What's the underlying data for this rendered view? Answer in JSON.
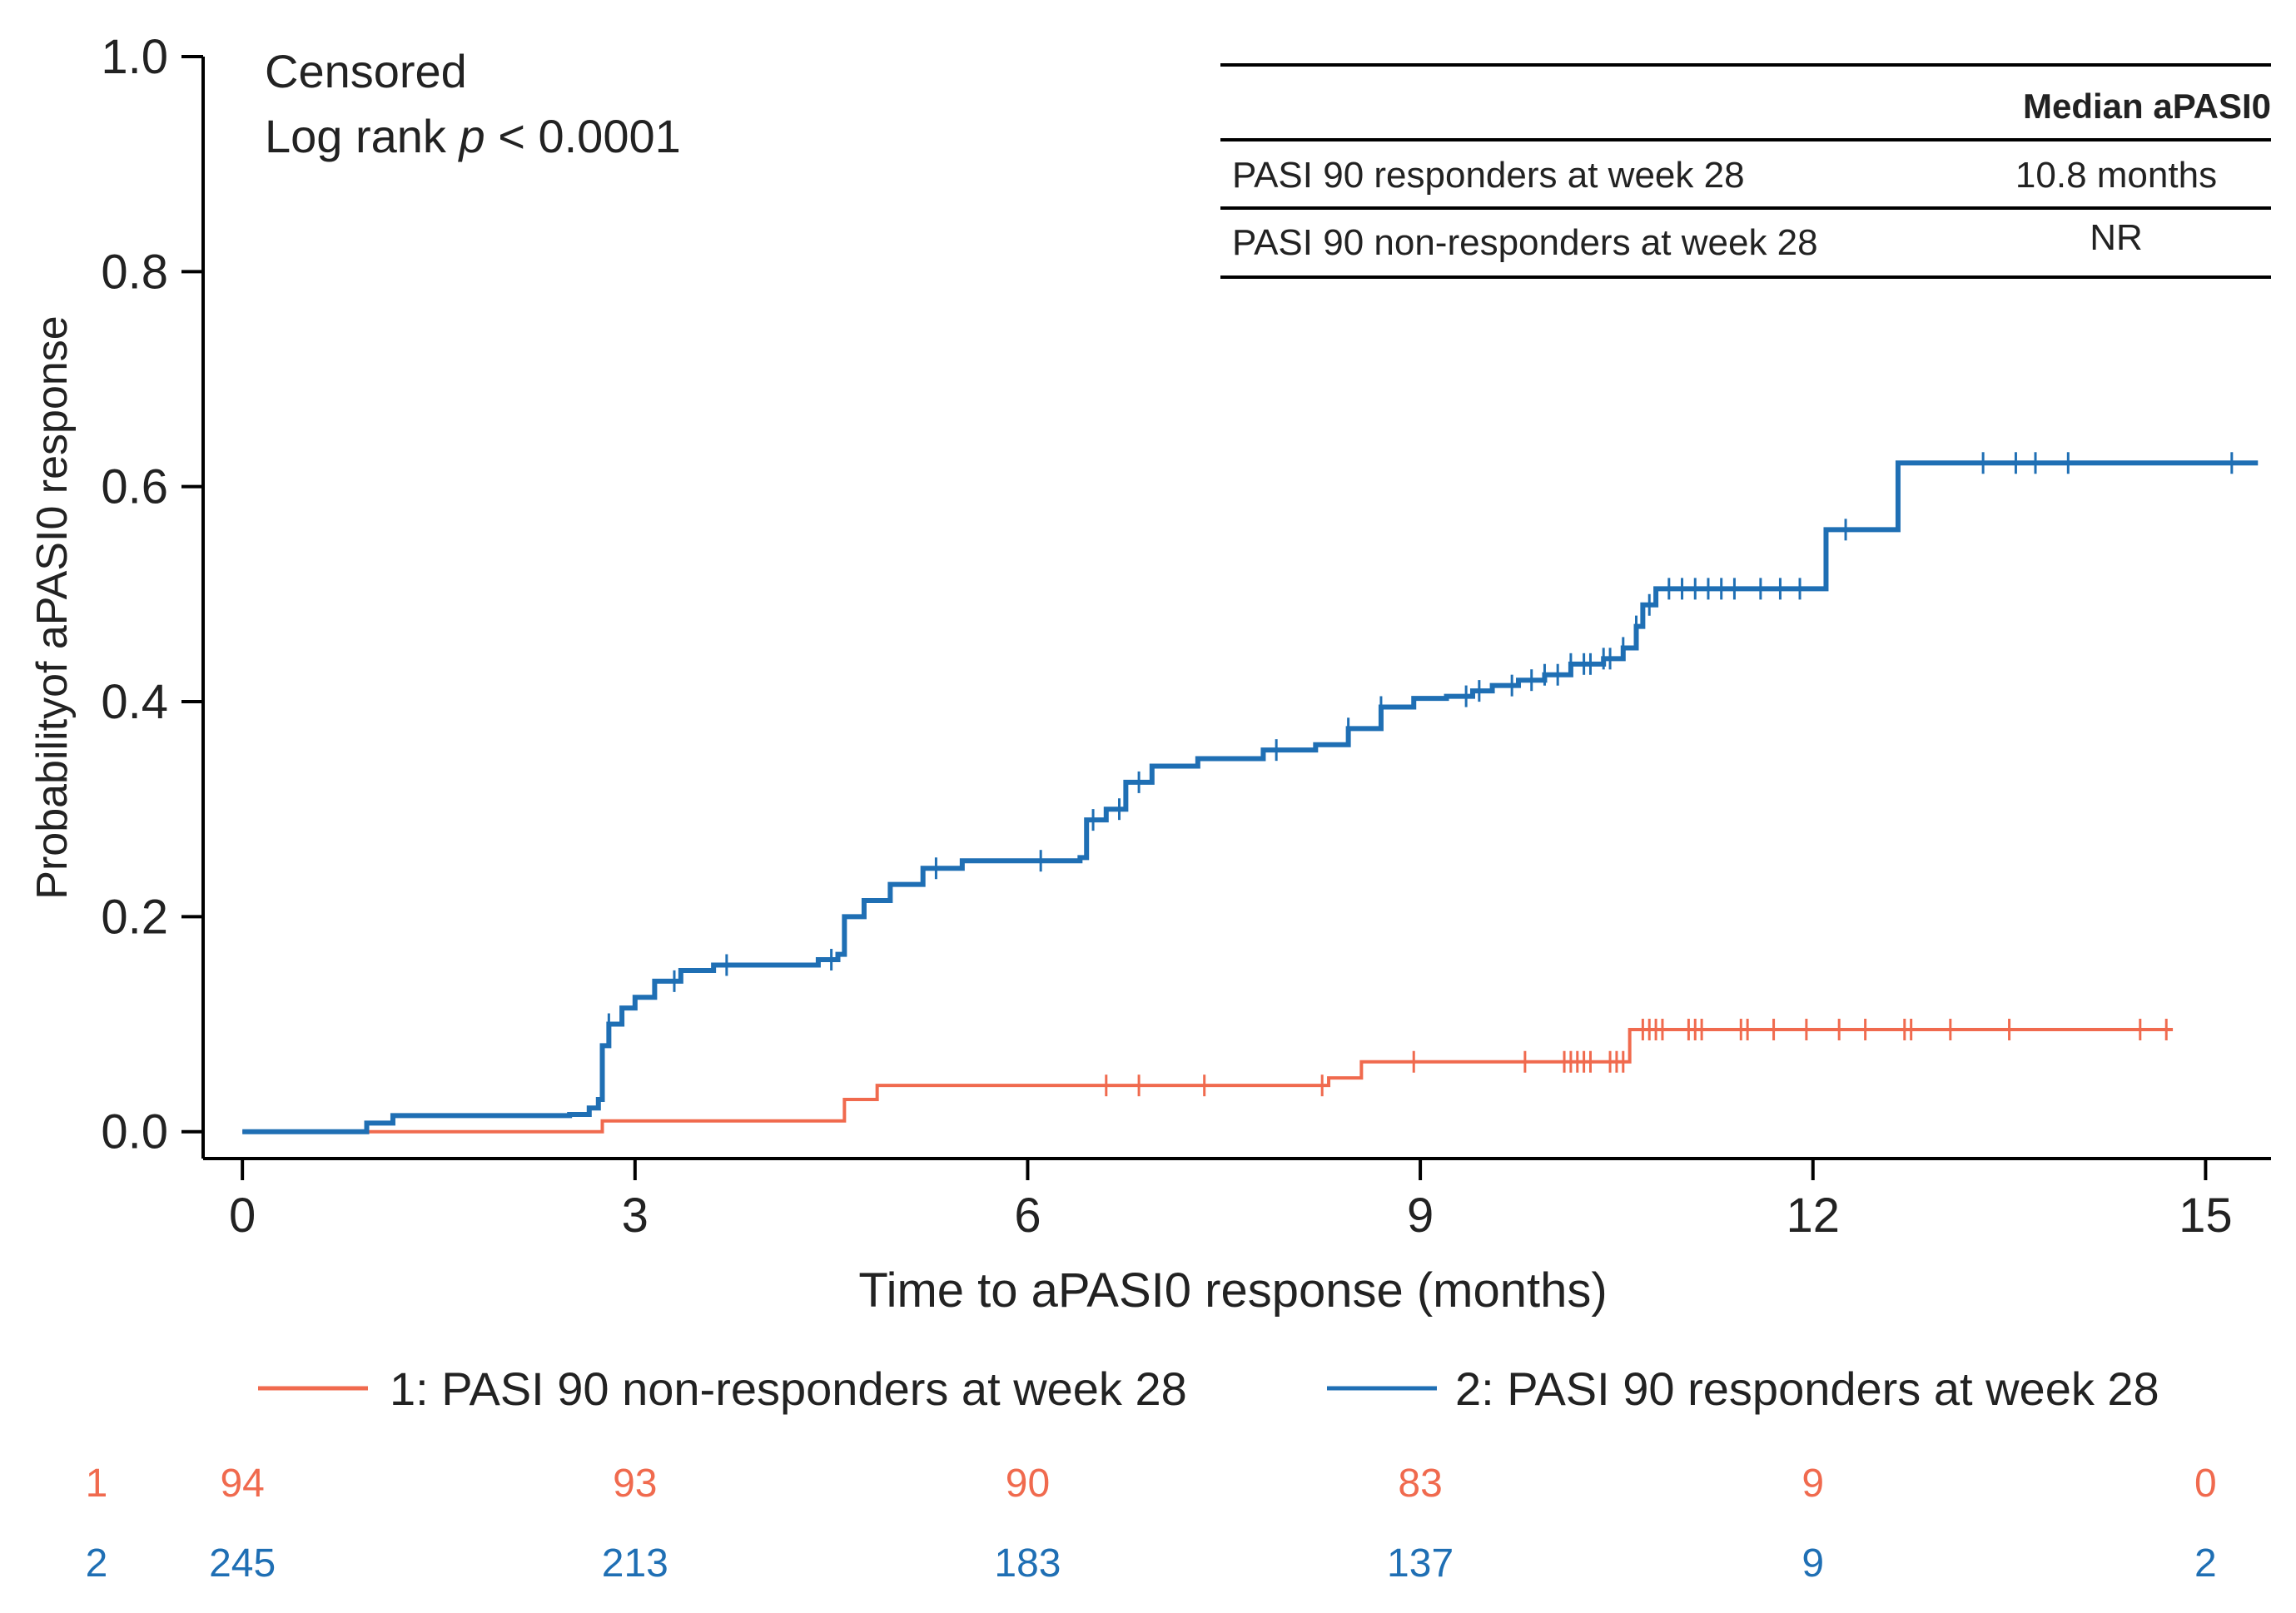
{
  "chart_data": {
    "type": "kaplan-meier",
    "x_label": "Time to aPASI0 response (months)",
    "y_label": "Probabilityof aPASI0 response",
    "x_ticks": [
      0,
      3,
      6,
      9,
      12,
      15
    ],
    "y_ticks": [
      "0.0",
      "0.2",
      "0.4",
      "0.6",
      "0.8",
      "1.0"
    ],
    "xlim": [
      -0.3,
      15.5
    ],
    "ylim": [
      -0.025,
      1.0
    ],
    "annotation": {
      "line1": "Censored",
      "line2_prefix": "Log rank ",
      "line2_italic": "p",
      "line2_suffix": " < 0.0001"
    },
    "summary_table": {
      "header": "Median aPASI0",
      "rows": [
        {
          "label": "PASI 90 responders at week 28",
          "value": "10.8 months"
        },
        {
          "label": "PASI 90 non-responders at week 28",
          "value": "NR"
        }
      ]
    },
    "legend": [
      {
        "label": "1: PASI 90 non-responders at week 28",
        "color": "#f06a4e"
      },
      {
        "label": "2: PASI 90 responders at week 28",
        "color": "#1f6fb4"
      }
    ],
    "series": [
      {
        "name": "PASI 90 non-responders at week 28",
        "color": "#f06a4e",
        "steps": [
          [
            0,
            0.0
          ],
          [
            0.9,
            0.0
          ],
          [
            2.75,
            0.0
          ],
          [
            2.75,
            0.01
          ],
          [
            4.55,
            0.01
          ],
          [
            4.6,
            0.03
          ],
          [
            4.85,
            0.03
          ],
          [
            4.85,
            0.043
          ],
          [
            8.3,
            0.043
          ],
          [
            8.3,
            0.05
          ],
          [
            8.55,
            0.05
          ],
          [
            8.55,
            0.065
          ],
          [
            10.6,
            0.065
          ],
          [
            10.6,
            0.095
          ],
          [
            14.75,
            0.095
          ]
        ],
        "censored": [
          6.6,
          6.85,
          7.35,
          8.25,
          8.95,
          9.8,
          10.1,
          10.15,
          10.2,
          10.25,
          10.3,
          10.45,
          10.5,
          10.55,
          10.7,
          10.75,
          10.8,
          10.85,
          11.05,
          11.1,
          11.15,
          11.45,
          11.5,
          11.7,
          11.95,
          12.2,
          12.4,
          12.7,
          12.75,
          13.05,
          13.5,
          14.5,
          14.7
        ]
      },
      {
        "name": "PASI 90 responders at week 28",
        "color": "#1f6fb4",
        "steps": [
          [
            0,
            0.0
          ],
          [
            0.9,
            0.0
          ],
          [
            0.95,
            0.008
          ],
          [
            1.15,
            0.015
          ],
          [
            2.5,
            0.016
          ],
          [
            2.65,
            0.022
          ],
          [
            2.72,
            0.03
          ],
          [
            2.75,
            0.08
          ],
          [
            2.8,
            0.1
          ],
          [
            2.9,
            0.115
          ],
          [
            3.0,
            0.125
          ],
          [
            3.15,
            0.14
          ],
          [
            3.35,
            0.15
          ],
          [
            3.6,
            0.155
          ],
          [
            4.4,
            0.16
          ],
          [
            4.55,
            0.165
          ],
          [
            4.6,
            0.2
          ],
          [
            4.75,
            0.215
          ],
          [
            4.95,
            0.23
          ],
          [
            5.2,
            0.245
          ],
          [
            5.5,
            0.252
          ],
          [
            6.4,
            0.255
          ],
          [
            6.45,
            0.29
          ],
          [
            6.6,
            0.3
          ],
          [
            6.75,
            0.325
          ],
          [
            6.95,
            0.34
          ],
          [
            7.3,
            0.347
          ],
          [
            7.8,
            0.355
          ],
          [
            8.2,
            0.36
          ],
          [
            8.45,
            0.375
          ],
          [
            8.7,
            0.395
          ],
          [
            8.95,
            0.403
          ],
          [
            9.2,
            0.405
          ],
          [
            9.4,
            0.41
          ],
          [
            9.55,
            0.415
          ],
          [
            9.75,
            0.42
          ],
          [
            9.95,
            0.425
          ],
          [
            10.15,
            0.435
          ],
          [
            10.4,
            0.44
          ],
          [
            10.55,
            0.45
          ],
          [
            10.65,
            0.47
          ],
          [
            10.7,
            0.49
          ],
          [
            10.8,
            0.505
          ],
          [
            12.1,
            0.505
          ],
          [
            12.1,
            0.56
          ],
          [
            12.65,
            0.56
          ],
          [
            12.65,
            0.622
          ],
          [
            15.4,
            0.622
          ]
        ],
        "censored": [
          2.8,
          3.3,
          3.7,
          4.5,
          5.3,
          6.1,
          6.5,
          6.7,
          6.85,
          7.9,
          8.45,
          8.7,
          9.35,
          9.45,
          9.7,
          9.85,
          9.95,
          10.05,
          10.15,
          10.25,
          10.3,
          10.4,
          10.45,
          10.55,
          10.65,
          10.75,
          10.9,
          11.0,
          11.1,
          11.2,
          11.3,
          11.4,
          11.6,
          11.75,
          11.9,
          12.25,
          13.3,
          13.55,
          13.7,
          13.95,
          15.2
        ]
      }
    ],
    "risk_table": {
      "rows": [
        {
          "id": "1",
          "color": "#f06a4e",
          "values": [
            "94",
            "93",
            "90",
            "83",
            "9",
            "0"
          ]
        },
        {
          "id": "2",
          "color": "#1f6fb4",
          "values": [
            "245",
            "213",
            "183",
            "137",
            "9",
            "2"
          ]
        }
      ]
    }
  }
}
